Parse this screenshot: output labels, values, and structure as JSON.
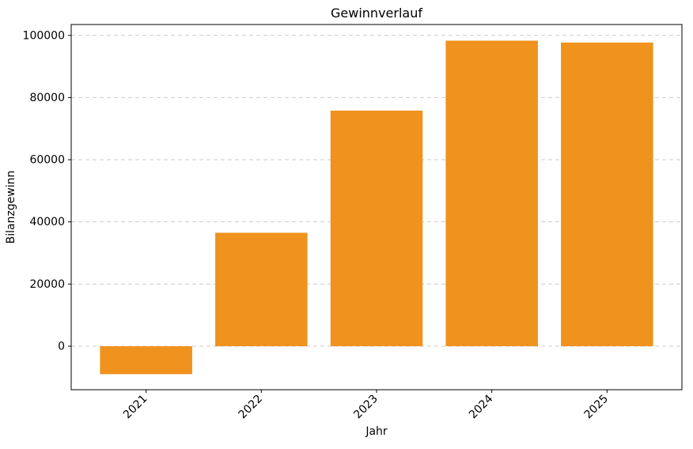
{
  "chart_data": {
    "type": "bar",
    "title": "Gewinnverlauf",
    "xlabel": "Jahr",
    "ylabel": "Bilanzgewinn",
    "categories": [
      "2021",
      "2022",
      "2023",
      "2024",
      "2025"
    ],
    "values": [
      -9000,
      36500,
      75800,
      98300,
      97700
    ],
    "ylim": [
      -14000,
      103500
    ],
    "yticks": [
      0,
      20000,
      40000,
      60000,
      80000,
      100000
    ],
    "bar_color": "#f0921e",
    "background": "#ffffff",
    "grid": {
      "axis": "y",
      "style": "dashed",
      "color": "#cccccc"
    },
    "x_tick_rotation": 45,
    "legend": "none"
  }
}
